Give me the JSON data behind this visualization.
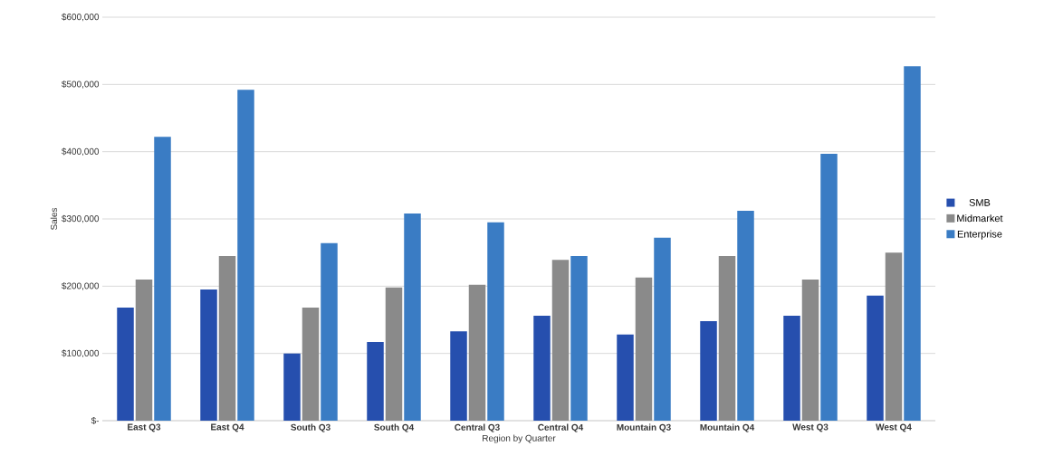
{
  "chart_data": {
    "type": "bar",
    "xlabel": "Region by Quarter",
    "ylabel": "Sales",
    "categories": [
      "East Q3",
      "East Q4",
      "South Q3",
      "South Q4",
      "Central Q3",
      "Central Q4",
      "Mountain Q3",
      "Mountain Q4",
      "West Q3",
      "West Q4"
    ],
    "series": [
      {
        "name": "SMB",
        "color": "#264fae",
        "values": [
          168000,
          195000,
          100000,
          117000,
          133000,
          156000,
          128000,
          148000,
          156000,
          186000
        ]
      },
      {
        "name": "Midmarket",
        "color": "#8a8a8a",
        "values": [
          210000,
          245000,
          168000,
          198000,
          202000,
          239000,
          213000,
          245000,
          210000,
          250000
        ]
      },
      {
        "name": "Enterprise",
        "color": "#3a7cc4",
        "values": [
          422000,
          492000,
          264000,
          308000,
          295000,
          245000,
          272000,
          312000,
          397000,
          527000
        ]
      }
    ],
    "ylim": [
      0,
      600000
    ],
    "yticks": [
      {
        "value": 0,
        "label": "$-"
      },
      {
        "value": 100000,
        "label": "$100,000"
      },
      {
        "value": 200000,
        "label": "$200,000"
      },
      {
        "value": 300000,
        "label": "$300,000"
      },
      {
        "value": 400000,
        "label": "$400,000"
      },
      {
        "value": 500000,
        "label": "$500,000"
      },
      {
        "value": 600000,
        "label": "$600,000"
      }
    ],
    "grid": "y",
    "legend": "right"
  }
}
